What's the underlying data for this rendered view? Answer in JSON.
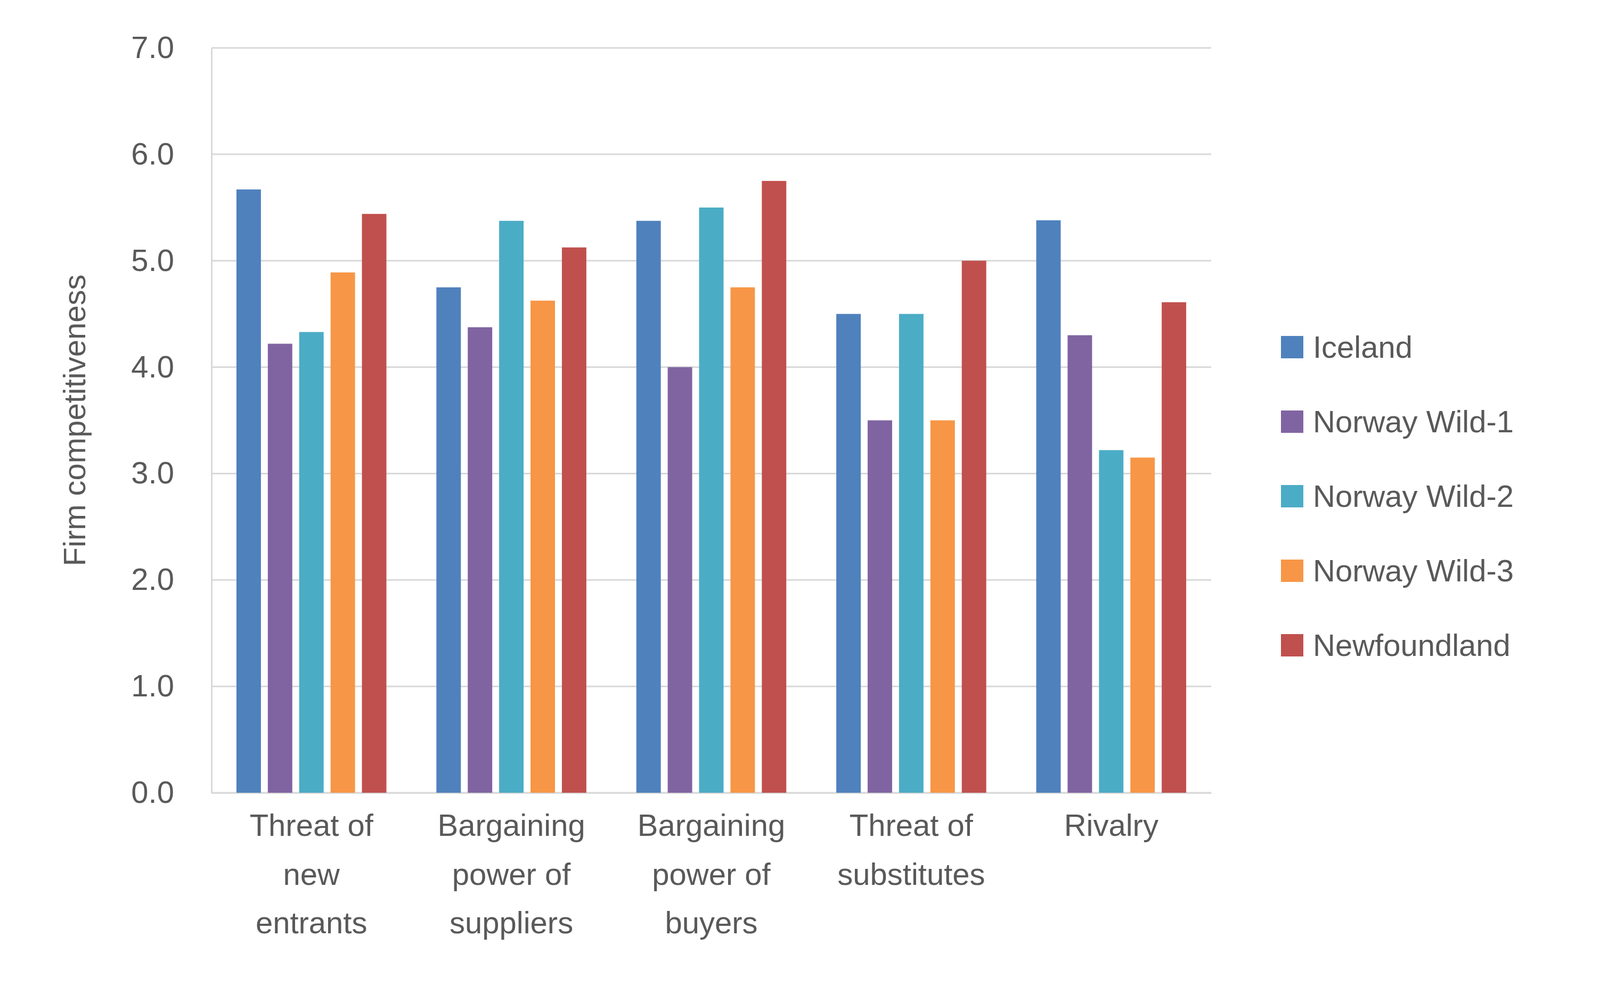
{
  "chart_data": {
    "type": "bar",
    "y_label": "Firm competitiveness",
    "categories": [
      "Threat of new entrants",
      "Bargaining power of suppliers",
      "Bargaining power of buyers",
      "Threat of substitutes",
      "Rivalry"
    ],
    "series": [
      {
        "name": "Iceland",
        "color": "#4f81bd",
        "values": [
          5.67,
          4.75,
          5.375,
          4.5,
          5.38
        ]
      },
      {
        "name": "Norway Wild-1",
        "color": "#8064a2",
        "values": [
          4.22,
          4.375,
          4.0,
          3.5,
          4.3
        ]
      },
      {
        "name": "Norway Wild-2",
        "color": "#4bacc6",
        "values": [
          4.33,
          5.375,
          5.5,
          4.5,
          3.22
        ]
      },
      {
        "name": "Norway Wild-3",
        "color": "#f79646",
        "values": [
          4.89,
          4.625,
          4.75,
          3.5,
          3.15
        ]
      },
      {
        "name": "Newfoundland",
        "color": "#c0504d",
        "values": [
          5.44,
          5.125,
          5.75,
          5.0,
          4.61
        ]
      }
    ],
    "ylim": [
      0,
      7
    ],
    "yticks": [
      {
        "value": 0,
        "label": "0.0"
      },
      {
        "value": 1,
        "label": "1.0"
      },
      {
        "value": 2,
        "label": "2.0"
      },
      {
        "value": 3,
        "label": "3.0"
      },
      {
        "value": 4,
        "label": "4.0"
      },
      {
        "value": 5,
        "label": "5.0"
      },
      {
        "value": 6,
        "label": "6.0"
      },
      {
        "value": 7,
        "label": "7.0"
      }
    ],
    "grid": true,
    "legend": "right"
  }
}
